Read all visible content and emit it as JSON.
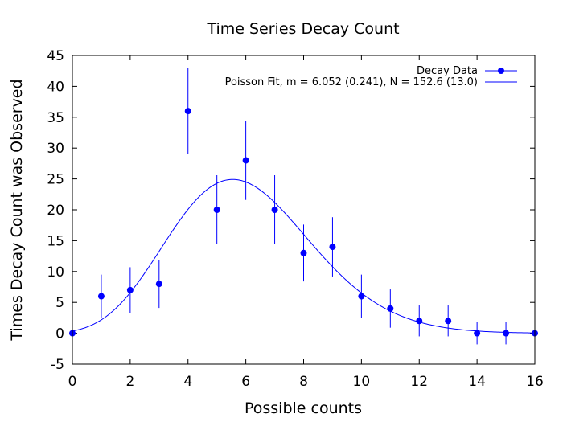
{
  "chart_data": {
    "type": "scatter",
    "title": "Time Series Decay Count",
    "xlabel": "Possible counts",
    "ylabel": "Times Decay Count was Observed",
    "xlim": [
      0,
      16
    ],
    "ylim": [
      -5,
      45
    ],
    "xticks": [
      "0",
      "2",
      "4",
      "6",
      "8",
      "10",
      "12",
      "14",
      "16"
    ],
    "yticks": [
      "-5",
      "0",
      "5",
      "10",
      "15",
      "20",
      "25",
      "30",
      "35",
      "40",
      "45"
    ],
    "grid": false,
    "legend_position": "top-right",
    "series": [
      {
        "name": "Decay Data",
        "kind": "points-with-errorbars",
        "color": "#0000ff",
        "x": [
          0,
          1,
          2,
          3,
          4,
          5,
          6,
          7,
          8,
          9,
          10,
          11,
          12,
          13,
          14,
          15,
          16
        ],
        "y": [
          0,
          6,
          7,
          8,
          36,
          20,
          28,
          20,
          13,
          14,
          6,
          4,
          2,
          2,
          0,
          0,
          0
        ],
        "yerr": [
          0,
          3.5,
          3.7,
          3.9,
          7.0,
          5.6,
          6.4,
          5.6,
          4.6,
          4.8,
          3.5,
          3.1,
          2.5,
          2.5,
          1.8,
          1.8,
          0
        ]
      },
      {
        "name": "Poisson Fit, m = 6.052 (0.241), N = 152.6 (13.0)",
        "kind": "line",
        "color": "#0000ff",
        "model": "poisson",
        "m": 6.052,
        "N": 152.6
      }
    ]
  }
}
